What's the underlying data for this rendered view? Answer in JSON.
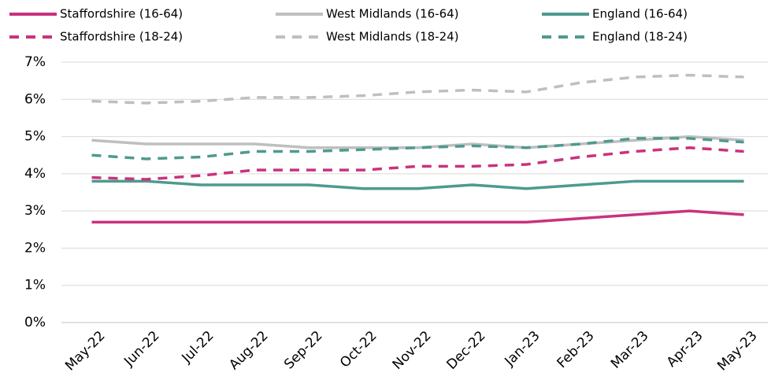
{
  "chart_data": {
    "type": "line",
    "categories": [
      "May-22",
      "Jun-22",
      "Jul-22",
      "Aug-22",
      "Sep-22",
      "Oct-22",
      "Nov-22",
      "Dec-22",
      "Jan-23",
      "Feb-23",
      "Mar-23",
      "Apr-23",
      "May-23"
    ],
    "series": [
      {
        "name": "Staffordshire (16-64)",
        "color": "#c9327e",
        "line_style": "solid",
        "values": [
          2.7,
          2.7,
          2.7,
          2.7,
          2.7,
          2.7,
          2.7,
          2.7,
          2.7,
          2.8,
          2.9,
          3.0,
          2.9
        ]
      },
      {
        "name": "West Midlands (16-64)",
        "color": "#bfbfbf",
        "line_style": "solid",
        "values": [
          4.9,
          4.8,
          4.8,
          4.8,
          4.7,
          4.7,
          4.7,
          4.8,
          4.7,
          4.8,
          4.9,
          5.0,
          4.9
        ]
      },
      {
        "name": "England (16-64)",
        "color": "#4e9a8f",
        "line_style": "solid",
        "values": [
          3.8,
          3.8,
          3.7,
          3.7,
          3.7,
          3.6,
          3.6,
          3.7,
          3.6,
          3.7,
          3.8,
          3.8,
          3.8
        ]
      },
      {
        "name": "Staffordshire (18-24)",
        "color": "#c9327e",
        "line_style": "dashed",
        "values": [
          3.9,
          3.85,
          3.95,
          4.1,
          4.1,
          4.1,
          4.2,
          4.2,
          4.25,
          4.45,
          4.6,
          4.7,
          4.6
        ]
      },
      {
        "name": "West Midlands (18-24)",
        "color": "#bfbfbf",
        "line_style": "dashed",
        "values": [
          5.95,
          5.9,
          5.95,
          6.05,
          6.05,
          6.1,
          6.2,
          6.25,
          6.2,
          6.45,
          6.6,
          6.65,
          6.6
        ]
      },
      {
        "name": "England (18-24)",
        "color": "#4e9a8f",
        "line_style": "dashed",
        "values": [
          4.5,
          4.4,
          4.45,
          4.6,
          4.6,
          4.65,
          4.7,
          4.75,
          4.7,
          4.8,
          4.95,
          4.95,
          4.85
        ]
      }
    ],
    "ylim": [
      0,
      7
    ],
    "yticks": [
      {
        "value": 0,
        "label": "0%"
      },
      {
        "value": 1,
        "label": "1%"
      },
      {
        "value": 2,
        "label": "2%"
      },
      {
        "value": 3,
        "label": "3%"
      },
      {
        "value": 4,
        "label": "4%"
      },
      {
        "value": 5,
        "label": "5%"
      },
      {
        "value": 6,
        "label": "6%"
      },
      {
        "value": 7,
        "label": "7%"
      }
    ],
    "grid": true,
    "legend": "top"
  }
}
